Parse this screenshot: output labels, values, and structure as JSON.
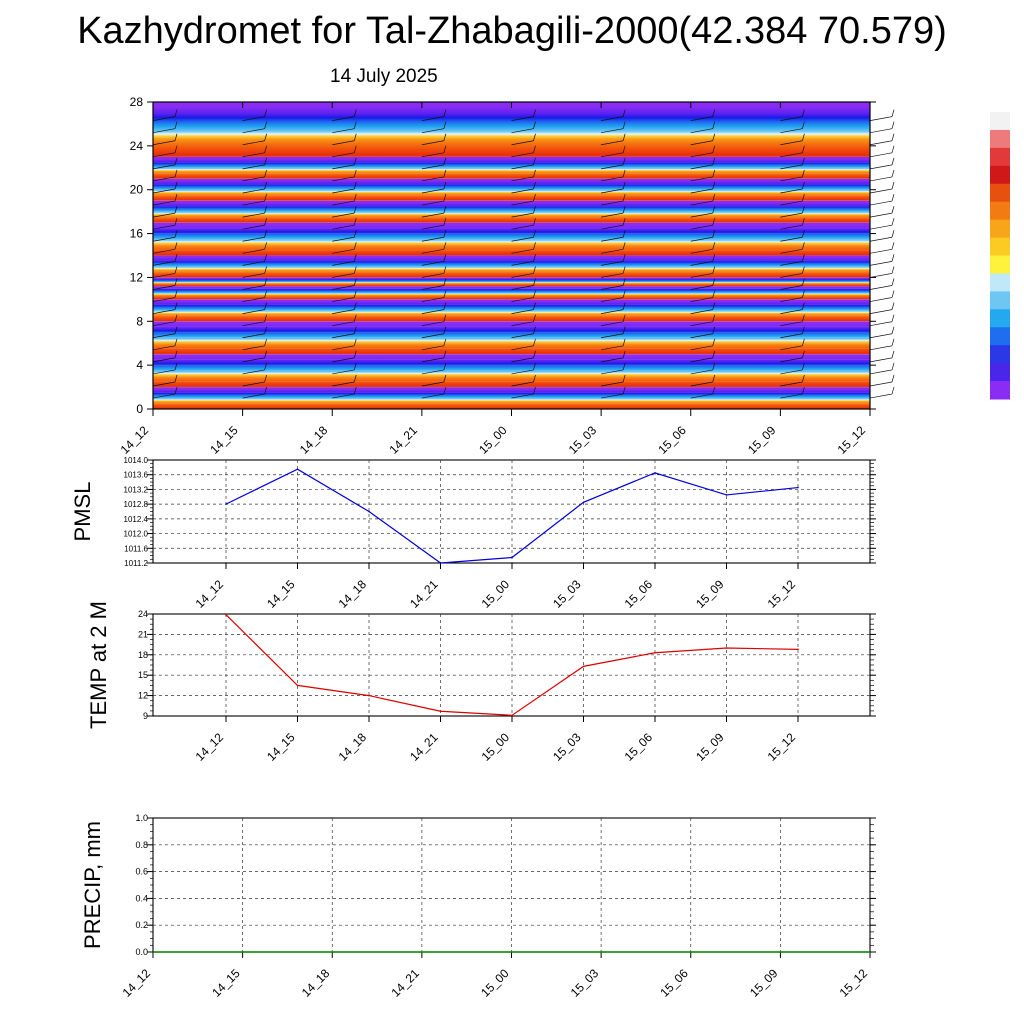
{
  "title": "Kazhydromet for Tal-Zhabagili-2000(42.384 70.579)",
  "date": "14 July 2025",
  "chart_data": [
    {
      "type": "heatmap",
      "title": "",
      "time_labels": [
        "14_12",
        "14_15",
        "14_18",
        "14_21",
        "15_00",
        "15_03",
        "15_06",
        "15_09",
        "15_12"
      ],
      "ylim": [
        0,
        28
      ],
      "yticks": [
        0,
        4,
        8,
        12,
        16,
        20,
        24,
        28
      ],
      "color_bands": [
        {
          "from": 0,
          "to": 2,
          "color": "#e8300a"
        },
        {
          "from": 2,
          "to": 5,
          "color": "#f04a0c"
        },
        {
          "from": 5,
          "to": 8,
          "color": "#f56f10"
        },
        {
          "from": 8,
          "to": 10,
          "color": "#f99816"
        },
        {
          "from": 10,
          "to": 11.2,
          "color": "#fdd235"
        },
        {
          "from": 11.2,
          "to": 12,
          "color": "#e8f4ff"
        },
        {
          "from": 12,
          "to": 14,
          "color": "#6ec6f2"
        },
        {
          "from": 14,
          "to": 17,
          "color": "#20a5f0"
        },
        {
          "from": 17,
          "to": 19,
          "color": "#1f64f0"
        },
        {
          "from": 19,
          "to": 21,
          "color": "#1a1ae8"
        },
        {
          "from": 21,
          "to": 23,
          "color": "#5a22f0"
        },
        {
          "from": 23,
          "to": 28,
          "color": "#8a2cf4"
        }
      ],
      "colorbar": [
        "#f2f2f2",
        "#ee7b7b",
        "#e23a3a",
        "#cf1818",
        "#e85010",
        "#f27c12",
        "#f7a51a",
        "#fbcb24",
        "#fef23c",
        "#bfe8f8",
        "#6ec6f2",
        "#24a8ee",
        "#1f6ef0",
        "#2a38e6",
        "#4a26ea",
        "#8a2cf4"
      ],
      "wind_barbs_present": true
    },
    {
      "type": "line",
      "ylabel": "PMSL",
      "x": [
        "14_12",
        "14_15",
        "14_18",
        "14_21",
        "15_00",
        "15_03",
        "15_06",
        "15_09",
        "15_12"
      ],
      "values": [
        1012.8,
        1013.75,
        1012.6,
        1011.2,
        1011.35,
        1012.85,
        1013.65,
        1013.05,
        1013.25
      ],
      "ylim": [
        1011.2,
        1014.0
      ],
      "yticks": [
        "1011.2",
        "1011.6",
        "1012.0",
        "1012.4",
        "1012.8",
        "1013.2",
        "1013.6",
        "1014.0"
      ],
      "color": "#0000dd",
      "grid": true
    },
    {
      "type": "line",
      "ylabel": "TEMP at 2 M",
      "x": [
        "14_12",
        "14_15",
        "14_18",
        "14_21",
        "15_00",
        "15_03",
        "15_06",
        "15_09",
        "15_12"
      ],
      "values": [
        23.9,
        13.5,
        12.0,
        9.7,
        9.1,
        16.3,
        18.3,
        19.0,
        18.8
      ],
      "ylim": [
        9,
        24
      ],
      "yticks": [
        "9",
        "12",
        "15",
        "18",
        "21",
        "24"
      ],
      "color": "#dd0000",
      "grid": true
    },
    {
      "type": "line",
      "ylabel": "PRECIP, mm",
      "x": [
        "14_12",
        "14_15",
        "14_18",
        "14_21",
        "15_00",
        "15_03",
        "15_06",
        "15_09",
        "15_12"
      ],
      "values": [
        0,
        0,
        0,
        0,
        0,
        0,
        0,
        0,
        0
      ],
      "ylim": [
        0,
        1.0
      ],
      "yticks": [
        "0.0",
        "0.2",
        "0.4",
        "0.6",
        "0.8",
        "1.0"
      ],
      "color": "#008800",
      "grid": true
    }
  ]
}
